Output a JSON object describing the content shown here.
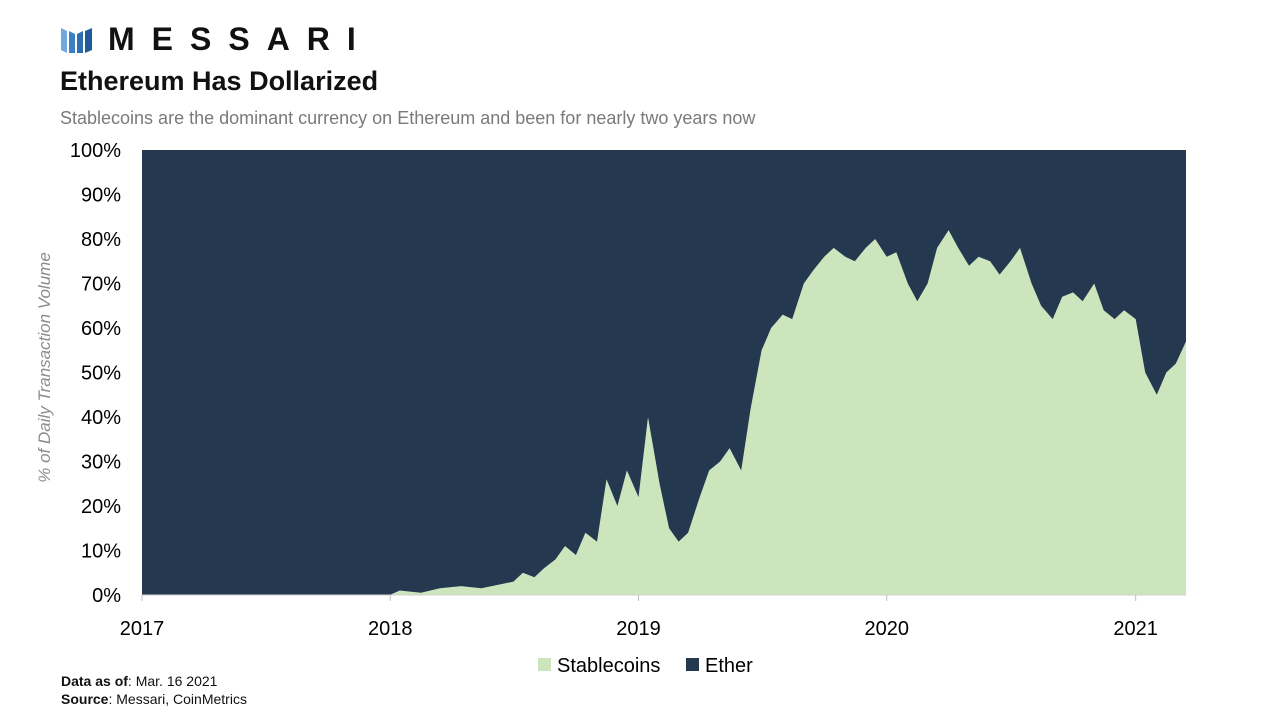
{
  "brand": {
    "name": "MESSARI"
  },
  "header": {
    "title": "Ethereum Has Dollarized",
    "subtitle": "Stablecoins are the dominant currency on Ethereum and been for nearly two years now"
  },
  "footer": {
    "data_as_of_label": "Data as of",
    "data_as_of_value": ": Mar. 16 2021",
    "source_label": "Source",
    "source_value": ": Messari, CoinMetrics"
  },
  "colors": {
    "stablecoins": "#cde5bd",
    "ether": "#243850",
    "logo_blue": "#3b7fc4"
  },
  "chart_data": {
    "type": "area",
    "stacked": true,
    "percent": true,
    "xlabel": "",
    "ylabel": "% of Daily Transaction Volume",
    "ylim": [
      0,
      100
    ],
    "xlim": [
      "2017-01-01",
      "2021-03-16"
    ],
    "x_ticks": [
      "2017",
      "2018",
      "2019",
      "2020",
      "2021"
    ],
    "y_ticks": [
      "0%",
      "10%",
      "20%",
      "30%",
      "40%",
      "50%",
      "60%",
      "70%",
      "80%",
      "90%",
      "100%"
    ],
    "grid": false,
    "legend": "bottom-center",
    "series": [
      {
        "name": "Stablecoins",
        "color": "#cde5bd",
        "points": [
          [
            "2017-01-01",
            0
          ],
          [
            "2017-12-31",
            0
          ],
          [
            "2018-01-15",
            1
          ],
          [
            "2018-02-15",
            0.5
          ],
          [
            "2018-03-15",
            1.5
          ],
          [
            "2018-04-15",
            2
          ],
          [
            "2018-05-15",
            1.5
          ],
          [
            "2018-06-15",
            2.5
          ],
          [
            "2018-07-01",
            3
          ],
          [
            "2018-07-15",
            5
          ],
          [
            "2018-08-01",
            4
          ],
          [
            "2018-08-15",
            6
          ],
          [
            "2018-09-01",
            8
          ],
          [
            "2018-09-15",
            11
          ],
          [
            "2018-10-01",
            9
          ],
          [
            "2018-10-15",
            14
          ],
          [
            "2018-11-01",
            12
          ],
          [
            "2018-11-15",
            26
          ],
          [
            "2018-12-01",
            20
          ],
          [
            "2018-12-15",
            28
          ],
          [
            "2019-01-01",
            22
          ],
          [
            "2019-01-15",
            40
          ],
          [
            "2019-02-01",
            25
          ],
          [
            "2019-02-15",
            15
          ],
          [
            "2019-03-01",
            12
          ],
          [
            "2019-03-15",
            14
          ],
          [
            "2019-04-01",
            22
          ],
          [
            "2019-04-15",
            28
          ],
          [
            "2019-05-01",
            30
          ],
          [
            "2019-05-15",
            33
          ],
          [
            "2019-06-01",
            28
          ],
          [
            "2019-06-15",
            42
          ],
          [
            "2019-07-01",
            55
          ],
          [
            "2019-07-15",
            60
          ],
          [
            "2019-08-01",
            63
          ],
          [
            "2019-08-15",
            62
          ],
          [
            "2019-09-01",
            70
          ],
          [
            "2019-09-15",
            73
          ],
          [
            "2019-10-01",
            76
          ],
          [
            "2019-10-15",
            78
          ],
          [
            "2019-11-01",
            76
          ],
          [
            "2019-11-15",
            75
          ],
          [
            "2019-12-01",
            78
          ],
          [
            "2019-12-15",
            80
          ],
          [
            "2020-01-01",
            76
          ],
          [
            "2020-01-15",
            77
          ],
          [
            "2020-02-01",
            70
          ],
          [
            "2020-02-15",
            66
          ],
          [
            "2020-03-01",
            70
          ],
          [
            "2020-03-15",
            78
          ],
          [
            "2020-04-01",
            82
          ],
          [
            "2020-04-15",
            78
          ],
          [
            "2020-05-01",
            74
          ],
          [
            "2020-05-15",
            76
          ],
          [
            "2020-06-01",
            75
          ],
          [
            "2020-06-15",
            72
          ],
          [
            "2020-07-01",
            75
          ],
          [
            "2020-07-15",
            78
          ],
          [
            "2020-08-01",
            70
          ],
          [
            "2020-08-15",
            65
          ],
          [
            "2020-09-01",
            62
          ],
          [
            "2020-09-15",
            67
          ],
          [
            "2020-10-01",
            68
          ],
          [
            "2020-10-15",
            66
          ],
          [
            "2020-11-01",
            70
          ],
          [
            "2020-11-15",
            64
          ],
          [
            "2020-12-01",
            62
          ],
          [
            "2020-12-15",
            64
          ],
          [
            "2021-01-01",
            62
          ],
          [
            "2021-01-15",
            50
          ],
          [
            "2021-02-01",
            45
          ],
          [
            "2021-02-15",
            50
          ],
          [
            "2021-03-01",
            52
          ],
          [
            "2021-03-16",
            57
          ]
        ]
      },
      {
        "name": "Ether",
        "color": "#243850",
        "note_remainder": "100% minus Stablecoins"
      }
    ]
  }
}
